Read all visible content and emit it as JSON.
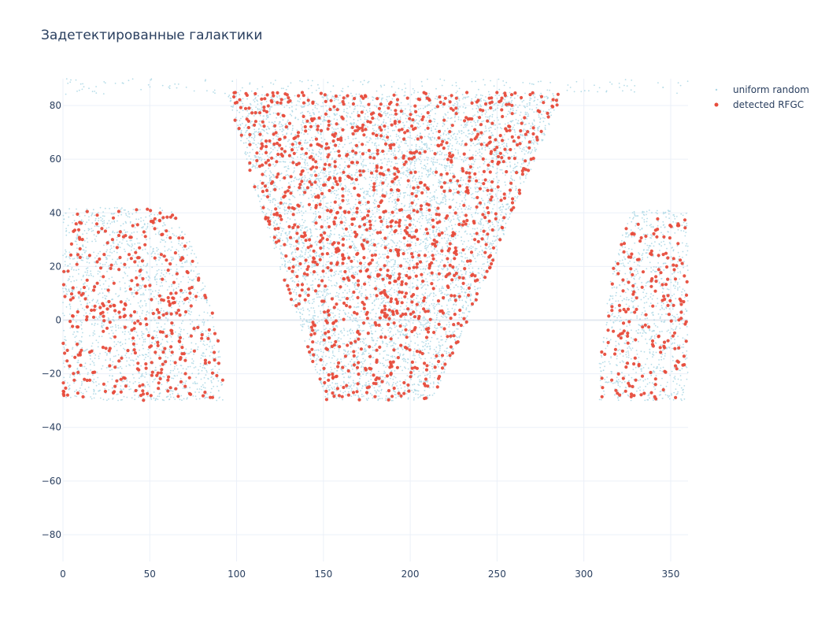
{
  "chart_data": {
    "type": "scatter",
    "title": "Задетектированные галактики",
    "xlabel": "",
    "ylabel": "",
    "xlim": [
      0,
      360
    ],
    "ylim": [
      -90,
      90
    ],
    "x_ticks": [
      0,
      50,
      100,
      150,
      200,
      250,
      300,
      350
    ],
    "y_ticks": [
      -80,
      -60,
      -40,
      -20,
      0,
      20,
      40,
      60,
      80
    ],
    "grid": true,
    "legend_position": "top-right",
    "series": [
      {
        "name": "uniform random",
        "color": "#add8e6",
        "marker_size": "small",
        "count": 9000,
        "regions": [
          {
            "x": [
              0,
              92
            ],
            "y": [
              -30,
              42
            ],
            "shape": "quarter-ellipse-left"
          },
          {
            "x": [
              92,
              300
            ],
            "y": [
              -30,
              84
            ],
            "shape": "funnel"
          },
          {
            "x": [
              309,
              360
            ],
            "y": [
              -30,
              41
            ],
            "shape": "quarter-ellipse-right"
          },
          {
            "x": [
              0,
              360
            ],
            "y": [
              84,
              90
            ],
            "shape": "polar-cap"
          }
        ]
      },
      {
        "name": "detected RFGC",
        "color": "#e74c3c",
        "marker_size": "medium",
        "count": 1800,
        "regions": [
          {
            "x": [
              0,
              92
            ],
            "y": [
              -30,
              42
            ],
            "shape": "quarter-ellipse-left"
          },
          {
            "x": [
              92,
              295
            ],
            "y": [
              -30,
              85
            ],
            "shape": "funnel"
          },
          {
            "x": [
              309,
              360
            ],
            "y": [
              -30,
              38
            ],
            "shape": "quarter-ellipse-right"
          }
        ]
      }
    ]
  }
}
